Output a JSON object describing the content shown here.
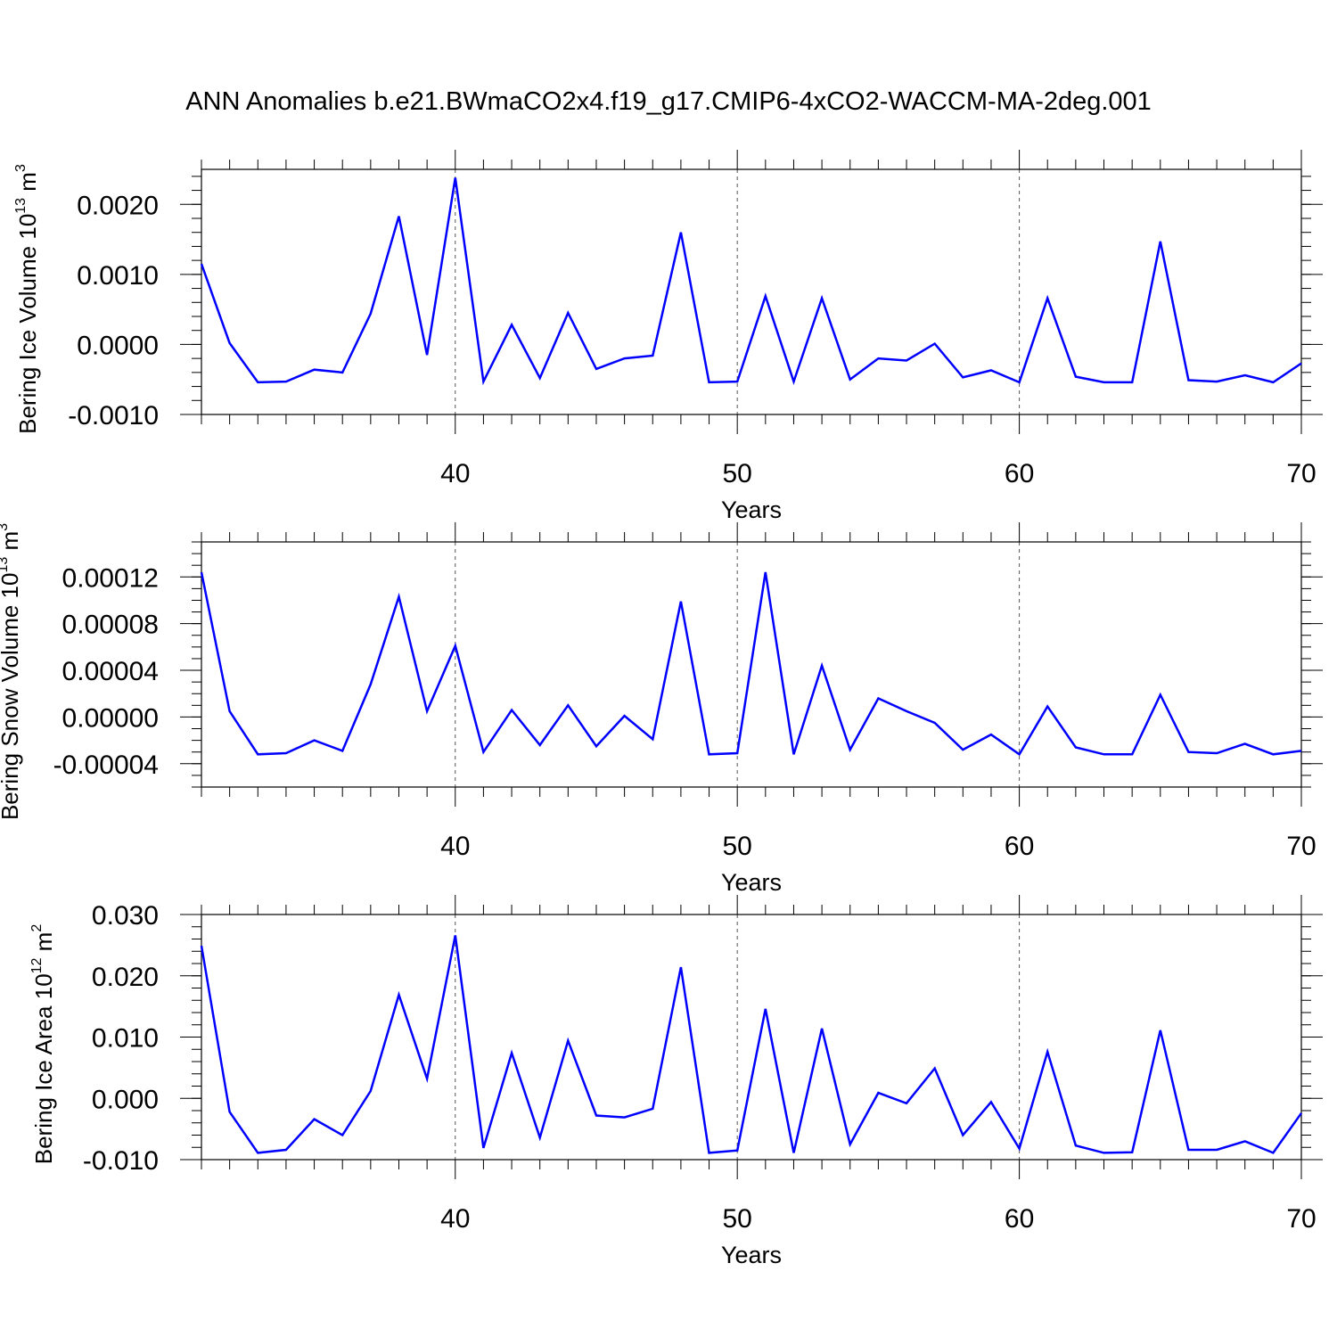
{
  "title": "ANN Anomalies b.e21.BWmaCO2x4.f19_g17.CMIP6-4xCO2-WACCM-MA-2deg.001",
  "chart_data": [
    {
      "type": "line",
      "ylabel": "Bering Ice Volume",
      "ylabel_unit": "10",
      "ylabel_exp": "13",
      "ylabel_unit_suffix": " m",
      "ylabel_unit_power": "3",
      "xlabel": "Years",
      "xlim": [
        31,
        70
      ],
      "ylim": [
        -0.001,
        0.0025
      ],
      "xticks": [
        40,
        50,
        60,
        70
      ],
      "xtick_labels": [
        "40",
        "50",
        "60",
        "70"
      ],
      "yticks": [
        -0.001,
        0.0,
        0.001,
        0.002
      ],
      "ytick_labels": [
        "-0.0010",
        "0.0000",
        "0.0010",
        "0.0020"
      ],
      "yminor_step": 0.0002,
      "grid_x": [
        40,
        50,
        60
      ],
      "color": "#0000ff",
      "x": [
        31,
        32,
        33,
        34,
        35,
        36,
        37,
        38,
        39,
        40,
        41,
        42,
        43,
        44,
        45,
        46,
        47,
        48,
        49,
        50,
        51,
        52,
        53,
        54,
        55,
        56,
        57,
        58,
        59,
        60,
        61,
        62,
        63,
        64,
        65,
        66,
        67,
        68,
        69,
        70
      ],
      "values": [
        0.00115,
        2e-05,
        -0.00054,
        -0.00053,
        -0.00036,
        -0.0004,
        0.00044,
        0.00183,
        -0.00015,
        0.00238,
        -0.00053,
        0.00028,
        -0.00048,
        0.00045,
        -0.00035,
        -0.0002,
        -0.00016,
        0.0016,
        -0.00054,
        -0.00053,
        0.00069,
        -0.00053,
        0.00066,
        -0.0005,
        -0.0002,
        -0.00023,
        1e-05,
        -0.00047,
        -0.00037,
        -0.00054,
        0.00066,
        -0.00046,
        -0.00054,
        -0.00054,
        0.00147,
        -0.00051,
        -0.00053,
        -0.00044,
        -0.00054,
        -0.00027
      ]
    },
    {
      "type": "line",
      "ylabel": "Bering Snow Volume",
      "ylabel_unit": "10",
      "ylabel_exp": "13",
      "ylabel_unit_suffix": " m",
      "ylabel_unit_power": "3",
      "xlabel": "Years",
      "xlim": [
        31,
        70
      ],
      "ylim": [
        -6e-05,
        0.00015
      ],
      "xticks": [
        40,
        50,
        60,
        70
      ],
      "xtick_labels": [
        "40",
        "50",
        "60",
        "70"
      ],
      "yticks": [
        -4e-05,
        0.0,
        4e-05,
        8e-05,
        0.00012
      ],
      "ytick_labels": [
        "-0.00004",
        "0.00000",
        "0.00004",
        "0.00008",
        "0.00012"
      ],
      "yminor_step": 1e-05,
      "grid_x": [
        40,
        50,
        60
      ],
      "color": "#0000ff",
      "x": [
        31,
        32,
        33,
        34,
        35,
        36,
        37,
        38,
        39,
        40,
        41,
        42,
        43,
        44,
        45,
        46,
        47,
        48,
        49,
        50,
        51,
        52,
        53,
        54,
        55,
        56,
        57,
        58,
        59,
        60,
        61,
        62,
        63,
        64,
        65,
        66,
        67,
        68,
        69,
        70
      ],
      "values": [
        0.000124,
        5e-06,
        -3.2e-05,
        -3.1e-05,
        -2e-05,
        -2.9e-05,
        2.8e-05,
        0.000103,
        5e-06,
        6.1e-05,
        -3e-05,
        6e-06,
        -2.4e-05,
        1e-05,
        -2.5e-05,
        1e-06,
        -1.9e-05,
        9.9e-05,
        -3.2e-05,
        -3.1e-05,
        0.000124,
        -3.2e-05,
        4.4e-05,
        -2.8e-05,
        1.6e-05,
        5e-06,
        -5e-06,
        -2.8e-05,
        -1.5e-05,
        -3.2e-05,
        9e-06,
        -2.6e-05,
        -3.2e-05,
        -3.2e-05,
        1.9e-05,
        -3e-05,
        -3.1e-05,
        -2.3e-05,
        -3.2e-05,
        -2.9e-05
      ]
    },
    {
      "type": "line",
      "ylabel": "Bering Ice Area",
      "ylabel_unit": "10",
      "ylabel_exp": "12",
      "ylabel_unit_suffix": " m",
      "ylabel_unit_power": "2",
      "xlabel": "Years",
      "xlim": [
        31,
        70
      ],
      "ylim": [
        -0.01,
        0.03
      ],
      "xticks": [
        40,
        50,
        60,
        70
      ],
      "xtick_labels": [
        "40",
        "50",
        "60",
        "70"
      ],
      "yticks": [
        -0.01,
        0.0,
        0.01,
        0.02,
        0.03
      ],
      "ytick_labels": [
        "-0.010",
        "0.000",
        "0.010",
        "0.020",
        "0.030"
      ],
      "yminor_step": 0.002,
      "grid_x": [
        40,
        50,
        60
      ],
      "color": "#0000ff",
      "x": [
        31,
        32,
        33,
        34,
        35,
        36,
        37,
        38,
        39,
        40,
        41,
        42,
        43,
        44,
        45,
        46,
        47,
        48,
        49,
        50,
        51,
        52,
        53,
        54,
        55,
        56,
        57,
        58,
        59,
        60,
        61,
        62,
        63,
        64,
        65,
        66,
        67,
        68,
        69,
        70
      ],
      "values": [
        0.0249,
        -0.0022,
        -0.0089,
        -0.0084,
        -0.0034,
        -0.006,
        0.0012,
        0.0169,
        0.0032,
        0.0266,
        -0.0081,
        0.0074,
        -0.0064,
        0.0094,
        -0.0028,
        -0.0031,
        -0.0017,
        0.0214,
        -0.0089,
        -0.0085,
        0.0146,
        -0.0089,
        0.0114,
        -0.0075,
        0.0009,
        -0.0008,
        0.0049,
        -0.006,
        -0.0006,
        -0.0082,
        0.0076,
        -0.0077,
        -0.0089,
        -0.0088,
        0.0111,
        -0.0084,
        -0.0084,
        -0.007,
        -0.0089,
        -0.0024
      ]
    }
  ]
}
